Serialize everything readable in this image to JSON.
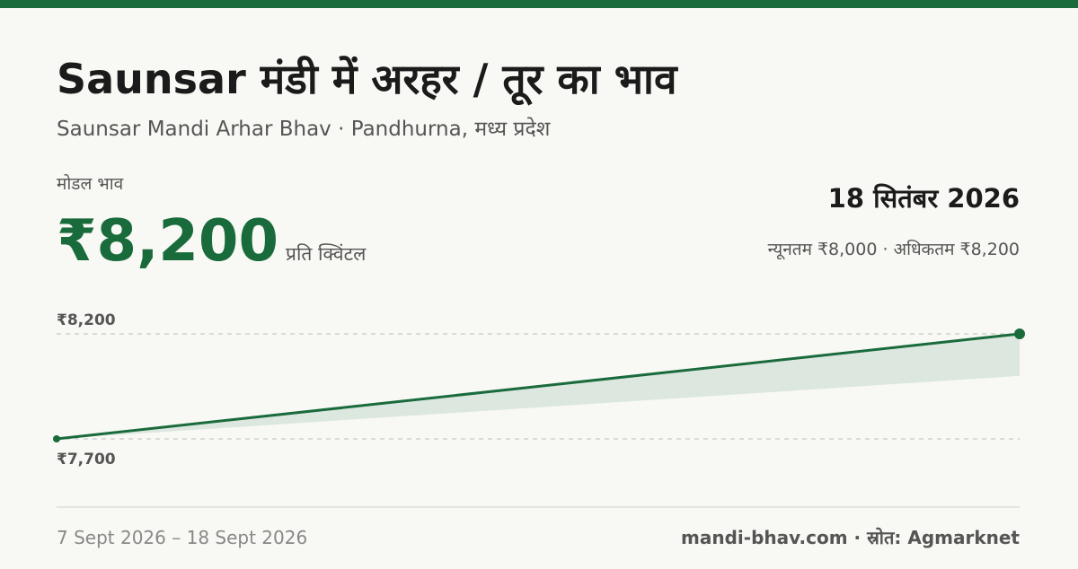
{
  "header": {
    "title": "Saunsar मंडी में अरहर / तूर का भाव",
    "subtitle": "Saunsar Mandi Arhar Bhav · Pandhurna, मध्य प्रदेश",
    "price_caption": "मोडल भाव",
    "price": "₹8,200",
    "price_unit": "प्रति क्विंटल",
    "date": "18 सितंबर 2026",
    "range_text": "न्यूनतम ₹8,000 · अधिकतम ₹8,200"
  },
  "chart_data": {
    "type": "line",
    "values": [
      7700,
      8200
    ],
    "min_values": [
      7700,
      8000
    ],
    "max_values": [
      7700,
      8200
    ],
    "color": "#1a6b3c",
    "band_color": "#dbe7df",
    "ylim": [
      7700,
      8200
    ],
    "yticks": [
      {
        "value": 8200,
        "label": "₹8,200"
      },
      {
        "value": 7700,
        "label": "₹7,700"
      }
    ],
    "grid": true
  },
  "footer": {
    "date_range": "7 Sept 2026 – 18 Sept 2026",
    "source": "mandi-bhav.com · स्रोत: Agmarknet"
  }
}
